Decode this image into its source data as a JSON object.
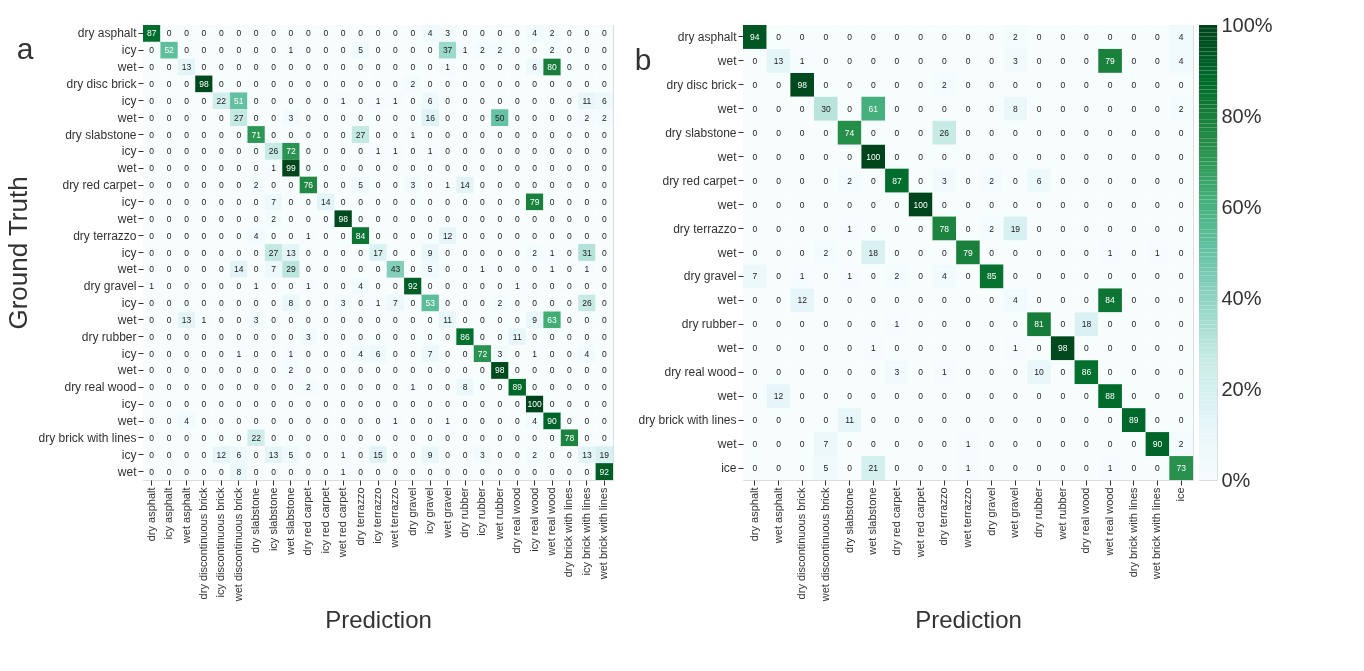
{
  "chart_data": [
    {
      "type": "heatmap",
      "xlabel": "Prediction",
      "ylabel": "Ground Truth",
      "annotations": [
        "a"
      ],
      "data_labels": true,
      "categories": [
        "dry asphalt",
        "icy asphalt",
        "wet asphalt",
        "dry discontinuous brick",
        "icy discontinuous brick",
        "wet discontinuous brick",
        "dry slabstone",
        "icy slabstone",
        "wet slabstone",
        "dry red carpet",
        "icy red carpet",
        "wet red carpet",
        "dry terrazzo",
        "icy terrazzo",
        "wet terrazzo",
        "dry gravel",
        "icy gravel",
        "wet gravel",
        "dry rubber",
        "icy rubber",
        "wet rubber",
        "dry real wood",
        "icy real wood",
        "wet real wood",
        "dry brick with lines",
        "icy brick with lines",
        "wet brick with lines"
      ],
      "y_categories": [
        "dry asphalt",
        "icy",
        "wet",
        "dry disc brick",
        "icy",
        "wet",
        "dry slabstone",
        "icy",
        "wet",
        "dry red carpet",
        "icy",
        "wet",
        "dry terrazzo",
        "icy",
        "wet",
        "dry gravel",
        "icy",
        "wet",
        "dry rubber",
        "icy",
        "wet",
        "dry real wood",
        "icy",
        "wet",
        "dry brick with lines",
        "icy",
        "wet"
      ],
      "cells": [
        [
          87,
          0,
          0,
          0,
          0,
          0,
          0,
          0,
          0,
          0,
          0,
          0,
          0,
          0,
          0,
          0,
          4,
          3,
          0,
          0,
          0,
          0,
          4,
          2,
          0,
          0,
          0
        ],
        [
          0,
          52,
          0,
          0,
          0,
          0,
          0,
          0,
          1,
          0,
          0,
          0,
          5,
          0,
          0,
          0,
          0,
          37,
          1,
          2,
          2,
          0,
          0,
          2,
          0,
          0,
          0
        ],
        [
          0,
          0,
          13,
          0,
          0,
          0,
          0,
          0,
          0,
          0,
          0,
          0,
          0,
          0,
          0,
          0,
          0,
          1,
          0,
          0,
          0,
          0,
          6,
          80,
          0,
          0,
          0
        ],
        [
          0,
          0,
          0,
          98,
          0,
          0,
          0,
          0,
          0,
          0,
          0,
          0,
          0,
          0,
          0,
          2,
          0,
          0,
          0,
          0,
          0,
          0,
          0,
          0,
          0,
          0,
          0
        ],
        [
          0,
          0,
          0,
          0,
          22,
          51,
          0,
          0,
          0,
          0,
          0,
          1,
          0,
          1,
          1,
          0,
          6,
          0,
          0,
          0,
          0,
          0,
          0,
          0,
          0,
          11,
          6
        ],
        [
          0,
          0,
          0,
          0,
          0,
          27,
          0,
          0,
          3,
          0,
          0,
          0,
          0,
          0,
          0,
          0,
          16,
          0,
          0,
          0,
          50,
          0,
          0,
          0,
          0,
          2,
          2
        ],
        [
          0,
          0,
          0,
          0,
          0,
          0,
          71,
          0,
          0,
          0,
          0,
          0,
          27,
          0,
          0,
          1,
          0,
          0,
          0,
          0,
          0,
          0,
          0,
          0,
          0,
          0,
          0
        ],
        [
          0,
          0,
          0,
          0,
          0,
          0,
          0,
          26,
          72,
          0,
          0,
          0,
          0,
          1,
          1,
          0,
          1,
          0,
          0,
          0,
          0,
          0,
          0,
          0,
          0,
          0,
          0
        ],
        [
          0,
          0,
          0,
          0,
          0,
          0,
          0,
          1,
          99,
          0,
          0,
          0,
          0,
          0,
          0,
          0,
          0,
          0,
          0,
          0,
          0,
          0,
          0,
          0,
          0,
          0,
          0
        ],
        [
          0,
          0,
          0,
          0,
          0,
          0,
          2,
          0,
          0,
          76,
          0,
          0,
          5,
          0,
          0,
          3,
          0,
          1,
          14,
          0,
          0,
          0,
          0,
          0,
          0,
          0,
          0
        ],
        [
          0,
          0,
          0,
          0,
          0,
          0,
          0,
          7,
          0,
          0,
          14,
          0,
          0,
          0,
          0,
          0,
          0,
          0,
          0,
          0,
          0,
          0,
          79,
          0,
          0,
          0,
          0
        ],
        [
          0,
          0,
          0,
          0,
          0,
          0,
          0,
          2,
          0,
          0,
          0,
          98,
          0,
          0,
          0,
          0,
          0,
          0,
          0,
          0,
          0,
          0,
          0,
          0,
          0,
          0,
          0
        ],
        [
          0,
          0,
          0,
          0,
          0,
          0,
          4,
          0,
          0,
          1,
          0,
          0,
          84,
          0,
          0,
          0,
          0,
          12,
          0,
          0,
          0,
          0,
          0,
          0,
          0,
          0,
          0
        ],
        [
          0,
          0,
          0,
          0,
          0,
          0,
          0,
          27,
          13,
          0,
          0,
          0,
          0,
          17,
          0,
          0,
          9,
          0,
          0,
          0,
          0,
          0,
          2,
          1,
          0,
          31,
          0
        ],
        [
          0,
          0,
          0,
          0,
          0,
          14,
          0,
          7,
          29,
          0,
          0,
          0,
          0,
          0,
          43,
          0,
          5,
          0,
          0,
          1,
          0,
          0,
          0,
          1,
          0,
          1,
          0
        ],
        [
          1,
          0,
          0,
          0,
          0,
          0,
          1,
          0,
          0,
          1,
          0,
          0,
          4,
          0,
          0,
          92,
          0,
          0,
          0,
          0,
          0,
          1,
          0,
          0,
          0,
          0,
          0
        ],
        [
          0,
          0,
          0,
          0,
          0,
          0,
          0,
          0,
          8,
          0,
          0,
          3,
          0,
          1,
          7,
          0,
          53,
          0,
          0,
          0,
          2,
          0,
          0,
          0,
          0,
          26,
          0
        ],
        [
          0,
          0,
          13,
          1,
          0,
          0,
          3,
          0,
          0,
          0,
          0,
          0,
          0,
          0,
          0,
          0,
          0,
          11,
          0,
          0,
          0,
          0,
          9,
          63,
          0,
          0,
          0
        ],
        [
          0,
          0,
          0,
          0,
          0,
          0,
          0,
          0,
          0,
          3,
          0,
          0,
          0,
          0,
          0,
          0,
          0,
          0,
          86,
          0,
          0,
          11,
          0,
          0,
          0,
          0,
          0
        ],
        [
          0,
          0,
          0,
          0,
          0,
          1,
          0,
          0,
          1,
          0,
          0,
          0,
          4,
          6,
          0,
          0,
          7,
          0,
          0,
          72,
          3,
          0,
          1,
          0,
          0,
          4,
          0
        ],
        [
          0,
          0,
          0,
          0,
          0,
          0,
          0,
          0,
          2,
          0,
          0,
          0,
          0,
          0,
          0,
          0,
          0,
          0,
          0,
          0,
          98,
          0,
          0,
          0,
          0,
          0,
          0
        ],
        [
          0,
          0,
          0,
          0,
          0,
          0,
          0,
          0,
          0,
          2,
          0,
          0,
          0,
          0,
          0,
          1,
          0,
          0,
          8,
          0,
          0,
          89,
          0,
          0,
          0,
          0,
          0
        ],
        [
          0,
          0,
          0,
          0,
          0,
          0,
          0,
          0,
          0,
          0,
          0,
          0,
          0,
          0,
          0,
          0,
          0,
          0,
          0,
          0,
          0,
          0,
          100,
          0,
          0,
          0,
          0
        ],
        [
          0,
          0,
          4,
          0,
          0,
          0,
          0,
          0,
          0,
          0,
          0,
          0,
          0,
          0,
          1,
          0,
          0,
          1,
          0,
          0,
          0,
          0,
          4,
          90,
          0,
          0,
          0
        ],
        [
          0,
          0,
          0,
          0,
          0,
          0,
          22,
          0,
          0,
          0,
          0,
          0,
          0,
          0,
          0,
          0,
          0,
          0,
          0,
          0,
          0,
          0,
          0,
          0,
          78,
          0,
          0
        ],
        [
          0,
          0,
          0,
          0,
          12,
          6,
          0,
          13,
          5,
          0,
          0,
          1,
          0,
          15,
          0,
          0,
          9,
          0,
          0,
          3,
          0,
          0,
          2,
          0,
          0,
          13,
          19
        ],
        [
          0,
          0,
          0,
          0,
          0,
          8,
          0,
          0,
          0,
          0,
          0,
          1,
          0,
          0,
          0,
          0,
          0,
          0,
          0,
          0,
          0,
          0,
          0,
          0,
          0,
          0,
          92
        ]
      ]
    },
    {
      "type": "heatmap",
      "xlabel": "Prediction",
      "annotations": [
        "b"
      ],
      "data_labels": true,
      "categories": [
        "dry asphalt",
        "wet asphalt",
        "dry discontinuous brick",
        "wet discontinuous brick",
        "dry slabstone",
        "wet slabstone",
        "dry red carpet",
        "wet red carpet",
        "dry terrazzo",
        "wet terrazzo",
        "dry gravel",
        "wet gravel",
        "dry rubber",
        "wet rubber",
        "dry real wood",
        "wet real wood",
        "dry brick with lines",
        "wet brick with lines",
        "ice"
      ],
      "y_categories": [
        "dry asphalt",
        "wet",
        "dry disc brick",
        "wet",
        "dry slabstone",
        "wet",
        "dry red carpet",
        "wet",
        "dry terrazzo",
        "wet",
        "dry gravel",
        "wet",
        "dry rubber",
        "wet",
        "dry real wood",
        "wet",
        "dry brick with lines",
        "wet",
        "ice"
      ],
      "clim": [
        0,
        100
      ],
      "cticks": [
        {
          "value": 0,
          "label": "0%"
        },
        {
          "value": 20,
          "label": "20%"
        },
        {
          "value": 40,
          "label": "40%"
        },
        {
          "value": 60,
          "label": "60%"
        },
        {
          "value": 80,
          "label": "80%"
        },
        {
          "value": 100,
          "label": "100%"
        }
      ],
      "cells": [
        [
          94,
          0,
          0,
          0,
          0,
          0,
          0,
          0,
          0,
          0,
          0,
          2,
          0,
          0,
          0,
          0,
          0,
          0,
          4
        ],
        [
          0,
          13,
          1,
          0,
          0,
          0,
          0,
          0,
          0,
          0,
          0,
          3,
          0,
          0,
          0,
          79,
          0,
          0,
          4
        ],
        [
          0,
          0,
          98,
          0,
          0,
          0,
          0,
          0,
          2,
          0,
          0,
          0,
          0,
          0,
          0,
          0,
          0,
          0,
          0
        ],
        [
          0,
          0,
          0,
          30,
          0,
          61,
          0,
          0,
          0,
          0,
          0,
          8,
          0,
          0,
          0,
          0,
          0,
          0,
          2
        ],
        [
          0,
          0,
          0,
          0,
          74,
          0,
          0,
          0,
          26,
          0,
          0,
          0,
          0,
          0,
          0,
          0,
          0,
          0,
          0
        ],
        [
          0,
          0,
          0,
          0,
          0,
          100,
          0,
          0,
          0,
          0,
          0,
          0,
          0,
          0,
          0,
          0,
          0,
          0,
          0
        ],
        [
          0,
          0,
          0,
          0,
          2,
          0,
          87,
          0,
          3,
          0,
          2,
          0,
          6,
          0,
          0,
          0,
          0,
          0,
          0
        ],
        [
          0,
          0,
          0,
          0,
          0,
          0,
          0,
          100,
          0,
          0,
          0,
          0,
          0,
          0,
          0,
          0,
          0,
          0,
          0
        ],
        [
          0,
          0,
          0,
          0,
          1,
          0,
          0,
          0,
          78,
          0,
          2,
          19,
          0,
          0,
          0,
          0,
          0,
          0,
          0
        ],
        [
          0,
          0,
          0,
          2,
          0,
          18,
          0,
          0,
          0,
          79,
          0,
          0,
          0,
          0,
          0,
          1,
          0,
          1,
          0
        ],
        [
          7,
          0,
          1,
          0,
          1,
          0,
          2,
          0,
          4,
          0,
          85,
          0,
          0,
          0,
          0,
          0,
          0,
          0,
          0
        ],
        [
          0,
          0,
          12,
          0,
          0,
          0,
          0,
          0,
          0,
          0,
          0,
          4,
          0,
          0,
          0,
          84,
          0,
          0,
          0
        ],
        [
          0,
          0,
          0,
          0,
          0,
          0,
          1,
          0,
          0,
          0,
          0,
          0,
          81,
          0,
          18,
          0,
          0,
          0,
          0
        ],
        [
          0,
          0,
          0,
          0,
          0,
          1,
          0,
          0,
          0,
          0,
          0,
          1,
          0,
          98,
          0,
          0,
          0,
          0,
          0
        ],
        [
          0,
          0,
          0,
          0,
          0,
          0,
          3,
          0,
          1,
          0,
          0,
          0,
          10,
          0,
          86,
          0,
          0,
          0,
          0
        ],
        [
          0,
          12,
          0,
          0,
          0,
          0,
          0,
          0,
          0,
          0,
          0,
          0,
          0,
          0,
          0,
          88,
          0,
          0,
          0
        ],
        [
          0,
          0,
          0,
          0,
          11,
          0,
          0,
          0,
          0,
          0,
          0,
          0,
          0,
          0,
          0,
          0,
          89,
          0,
          0
        ],
        [
          0,
          0,
          0,
          7,
          0,
          0,
          0,
          0,
          0,
          1,
          0,
          0,
          0,
          0,
          0,
          0,
          0,
          90,
          2
        ],
        [
          0,
          0,
          0,
          5,
          0,
          21,
          0,
          0,
          0,
          1,
          0,
          0,
          0,
          0,
          0,
          1,
          0,
          0,
          73
        ]
      ]
    }
  ]
}
